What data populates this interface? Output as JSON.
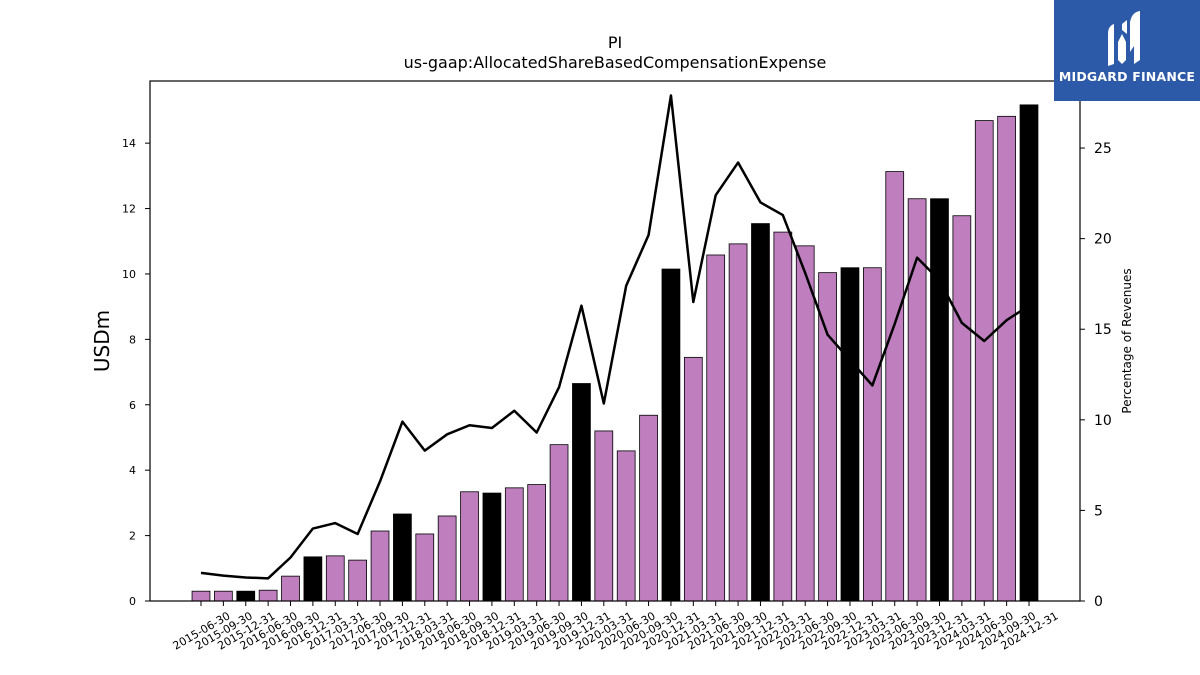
{
  "brand": {
    "name": "MIDGARD FINANCE",
    "bg_color": "#2c5aa8"
  },
  "chart_data": {
    "type": "bar",
    "title": "PI",
    "subtitle": "us-gaap:AllocatedShareBasedCompensationExpense",
    "ylabel": "USDm",
    "y2label": "Percentage of Revenues",
    "ylim": [
      0,
      15.9
    ],
    "y2lim": [
      0,
      28.7
    ],
    "yticks": [
      0,
      2,
      4,
      6,
      8,
      10,
      12,
      14
    ],
    "y2ticks": [
      0,
      5,
      10,
      15,
      20,
      25
    ],
    "grid": false,
    "categories": [
      "2015-06-30",
      "2015-09-30",
      "2015-12-31",
      "2016-06-30",
      "2016-09-30",
      "2016-12-31",
      "2017-03-31",
      "2017-06-30",
      "2017-09-30",
      "2017-12-31",
      "2018-03-31",
      "2018-06-30",
      "2018-09-30",
      "2018-12-31",
      "2019-03-31",
      "2019-06-30",
      "2019-09-30",
      "2019-12-31",
      "2020-03-31",
      "2020-06-30",
      "2020-09-30",
      "2020-12-31",
      "2021-03-31",
      "2021-06-30",
      "2021-09-30",
      "2021-12-31",
      "2022-03-31",
      "2022-06-30",
      "2022-09-30",
      "2022-12-31",
      "2023-03-31",
      "2023-06-30",
      "2023-09-30",
      "2023-12-31",
      "2024-03-31",
      "2024-06-30",
      "2024-09-30",
      "2024-12-31"
    ],
    "series": [
      {
        "values": [
          0.3,
          0.3,
          0.3,
          0.33,
          0.76,
          1.35,
          1.38,
          1.25,
          2.14,
          2.66,
          2.05,
          2.6,
          3.34,
          3.3,
          3.46,
          3.56,
          4.78,
          6.65,
          5.2,
          4.59,
          5.68,
          10.15,
          7.45,
          10.58,
          10.92,
          11.54,
          11.28,
          10.86,
          10.04,
          10.19,
          10.19,
          13.13,
          12.3,
          12.3,
          11.78,
          14.69,
          14.82,
          15.17
        ],
        "colors_by_index": [
          "#bf7fbf",
          "#bf7fbf",
          "#000000",
          "#bf7fbf",
          "#bf7fbf",
          "#000000",
          "#bf7fbf",
          "#bf7fbf",
          "#bf7fbf",
          "#000000",
          "#bf7fbf",
          "#bf7fbf",
          "#bf7fbf",
          "#000000",
          "#bf7fbf",
          "#bf7fbf",
          "#bf7fbf",
          "#000000",
          "#bf7fbf",
          "#bf7fbf",
          "#bf7fbf",
          "#000000",
          "#bf7fbf",
          "#bf7fbf",
          "#bf7fbf",
          "#000000",
          "#bf7fbf",
          "#bf7fbf",
          "#bf7fbf",
          "#000000",
          "#bf7fbf",
          "#bf7fbf",
          "#bf7fbf",
          "#000000",
          "#bf7fbf",
          "#bf7fbf",
          "#bf7fbf",
          "#000000"
        ]
      },
      {
        "type": "line",
        "axis": "right",
        "color": "#000000",
        "values": [
          1.55,
          1.4,
          1.3,
          1.25,
          2.4,
          4.0,
          4.3,
          3.7,
          6.6,
          9.9,
          8.3,
          9.2,
          9.7,
          9.55,
          10.5,
          9.3,
          11.8,
          16.3,
          10.9,
          17.4,
          20.2,
          27.9,
          16.5,
          22.4,
          24.2,
          22.0,
          21.3,
          18.1,
          14.7,
          13.3,
          11.9,
          15.3,
          18.95,
          17.7,
          15.35,
          14.35,
          15.5,
          16.3
        ]
      }
    ]
  }
}
